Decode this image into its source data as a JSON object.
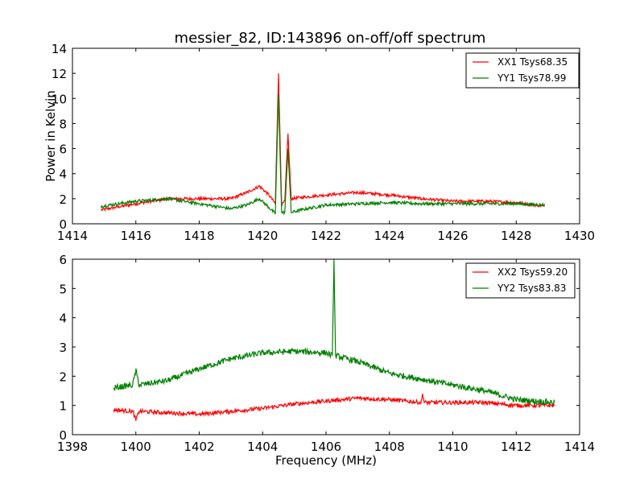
{
  "title": "messier_82, ID:143896 on-off/off spectrum",
  "chart_data": [
    {
      "type": "line",
      "title": "messier_82, ID:143896 on-off/off spectrum",
      "xlabel": "",
      "ylabel": "Power in Kelvin",
      "xlim": [
        1414,
        1430
      ],
      "ylim": [
        0,
        14
      ],
      "xticks": [
        "1414",
        "1416",
        "1418",
        "1420",
        "1422",
        "1424",
        "1426",
        "1428",
        "1430"
      ],
      "yticks": [
        "0",
        "2",
        "4",
        "6",
        "8",
        "10",
        "12",
        "14"
      ],
      "grid": false,
      "legend_position": "top-right",
      "series": [
        {
          "name": "XX1 Tsys68.35",
          "color": "#ff0000",
          "noise": 0.12,
          "x": [
            1414.9,
            1416,
            1417,
            1418,
            1419,
            1419.5,
            1419.9,
            1420.2,
            1420.4,
            1420.5,
            1420.6,
            1420.7,
            1420.8,
            1420.9,
            1421.2,
            1422,
            1423,
            1424,
            1425,
            1426,
            1427,
            1428,
            1428.9
          ],
          "y": [
            1.1,
            1.6,
            2.0,
            2.0,
            2.0,
            2.5,
            3.0,
            2.3,
            1.6,
            12.0,
            1.5,
            1.8,
            7.2,
            2.0,
            2.1,
            2.3,
            2.5,
            2.3,
            2.0,
            1.8,
            1.8,
            1.7,
            1.4
          ]
        },
        {
          "name": "YY1 Tsys78.99",
          "color": "#008000",
          "noise": 0.12,
          "x": [
            1414.9,
            1416,
            1417,
            1418,
            1419,
            1419.5,
            1419.9,
            1420.2,
            1420.4,
            1420.5,
            1420.6,
            1420.7,
            1420.8,
            1420.9,
            1421.2,
            1422,
            1423,
            1424,
            1425,
            1426,
            1427,
            1428,
            1428.9
          ],
          "y": [
            1.4,
            1.8,
            2.0,
            1.6,
            1.2,
            1.5,
            2.0,
            1.3,
            0.8,
            10.3,
            0.9,
            0.9,
            6.0,
            0.9,
            1.1,
            1.5,
            1.6,
            1.7,
            1.6,
            1.6,
            1.6,
            1.6,
            1.5
          ]
        }
      ]
    },
    {
      "type": "line",
      "title": "",
      "xlabel": "Frequency (MHz)",
      "ylabel": "",
      "xlim": [
        1398,
        1414
      ],
      "ylim": [
        0,
        6
      ],
      "xticks": [
        "1398",
        "1400",
        "1402",
        "1404",
        "1406",
        "1408",
        "1410",
        "1412",
        "1414"
      ],
      "yticks": [
        "0",
        "1",
        "2",
        "3",
        "4",
        "5",
        "6"
      ],
      "grid": false,
      "legend_position": "top-right",
      "series": [
        {
          "name": "XX2 Tsys59.20",
          "color": "#ff0000",
          "noise": 0.07,
          "x": [
            1399.3,
            1399.9,
            1400.0,
            1400.1,
            1401,
            1402,
            1403,
            1404,
            1405,
            1406,
            1407,
            1408,
            1409,
            1409.05,
            1409.1,
            1410,
            1411,
            1412,
            1413.2
          ],
          "y": [
            0.85,
            0.8,
            0.5,
            0.8,
            0.75,
            0.7,
            0.8,
            0.9,
            1.05,
            1.15,
            1.25,
            1.2,
            1.1,
            1.4,
            1.1,
            1.1,
            1.1,
            1.0,
            1.0
          ]
        },
        {
          "name": "YY2 Tsys83.83",
          "color": "#008000",
          "noise": 0.1,
          "x": [
            1399.3,
            1399.9,
            1400.0,
            1400.1,
            1401,
            1402,
            1403,
            1404,
            1405,
            1406,
            1406.2,
            1406.25,
            1406.3,
            1407,
            1408,
            1409,
            1410,
            1411,
            1412,
            1413.2
          ],
          "y": [
            1.6,
            1.7,
            2.2,
            1.7,
            1.85,
            2.25,
            2.6,
            2.8,
            2.85,
            2.8,
            2.7,
            6.0,
            2.7,
            2.5,
            2.1,
            1.9,
            1.7,
            1.5,
            1.2,
            1.1
          ]
        }
      ]
    }
  ]
}
